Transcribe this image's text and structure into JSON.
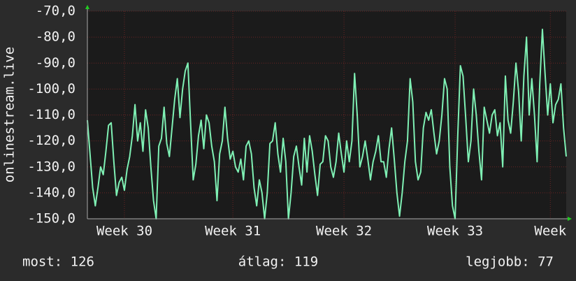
{
  "chart_data": {
    "type": "line",
    "ylabel": "onlinestream.live",
    "ylim": [
      -150,
      -70
    ],
    "yticks": [
      {
        "value": -70,
        "label": "-70,0"
      },
      {
        "value": -80,
        "label": "-80,0"
      },
      {
        "value": -90,
        "label": "-90,0"
      },
      {
        "value": -100,
        "label": "-100,0"
      },
      {
        "value": -110,
        "label": "-110,0"
      },
      {
        "value": -120,
        "label": "-120,0"
      },
      {
        "value": -130,
        "label": "-130,0"
      },
      {
        "value": -140,
        "label": "-140,0"
      },
      {
        "value": -150,
        "label": "-150,0"
      }
    ],
    "xlim": [
      0,
      181
    ],
    "xticks": [
      {
        "value": 14,
        "label": "Week 30"
      },
      {
        "value": 55,
        "label": "Week 31"
      },
      {
        "value": 97,
        "label": "Week 32"
      },
      {
        "value": 139,
        "label": "Week 33"
      },
      {
        "value": 175,
        "label": "Week"
      }
    ],
    "grid": true,
    "series": [
      {
        "color": "#7ff0b4",
        "values": [
          -112,
          -125,
          -138,
          -145,
          -138,
          -130,
          -133,
          -124,
          -114,
          -113,
          -128,
          -141,
          -136,
          -134,
          -139,
          -131,
          -126,
          -118,
          -106,
          -120,
          -113,
          -124,
          -108,
          -115,
          -130,
          -143,
          -150,
          -122,
          -119,
          -107,
          -121,
          -126,
          -115,
          -104,
          -96,
          -111,
          -100,
          -93,
          -90,
          -113,
          -135,
          -129,
          -118,
          -112,
          -123,
          -110,
          -113,
          -122,
          -128,
          -143,
          -125,
          -120,
          -107,
          -119,
          -127,
          -124,
          -130,
          -132,
          -127,
          -135,
          -122,
          -120,
          -125,
          -138,
          -145,
          -135,
          -140,
          -150,
          -140,
          -121,
          -120,
          -113,
          -125,
          -132,
          -119,
          -128,
          -150,
          -140,
          -126,
          -122,
          -130,
          -137,
          -119,
          -132,
          -118,
          -124,
          -133,
          -141,
          -129,
          -128,
          -118,
          -120,
          -130,
          -134,
          -128,
          -117,
          -125,
          -132,
          -120,
          -128,
          -120,
          -94,
          -110,
          -130,
          -126,
          -120,
          -127,
          -135,
          -128,
          -124,
          -118,
          -128,
          -128,
          -134,
          -123,
          -115,
          -127,
          -140,
          -149,
          -140,
          -128,
          -120,
          -96,
          -105,
          -128,
          -135,
          -132,
          -115,
          -109,
          -112,
          -108,
          -117,
          -125,
          -120,
          -110,
          -96,
          -100,
          -130,
          -145,
          -150,
          -118,
          -91,
          -95,
          -111,
          -128,
          -120,
          -100,
          -110,
          -124,
          -135,
          -107,
          -112,
          -117,
          -110,
          -108,
          -118,
          -113,
          -130,
          -95,
          -112,
          -117,
          -105,
          -90,
          -101,
          -120,
          -95,
          -80,
          -110,
          -96,
          -110,
          -128,
          -98,
          -77,
          -94,
          -110,
          -98,
          -113,
          -106,
          -104,
          -98,
          -115,
          -126
        ]
      }
    ],
    "footer": [
      "most: 126",
      "átlag: 119",
      "legjobb: 77"
    ]
  }
}
